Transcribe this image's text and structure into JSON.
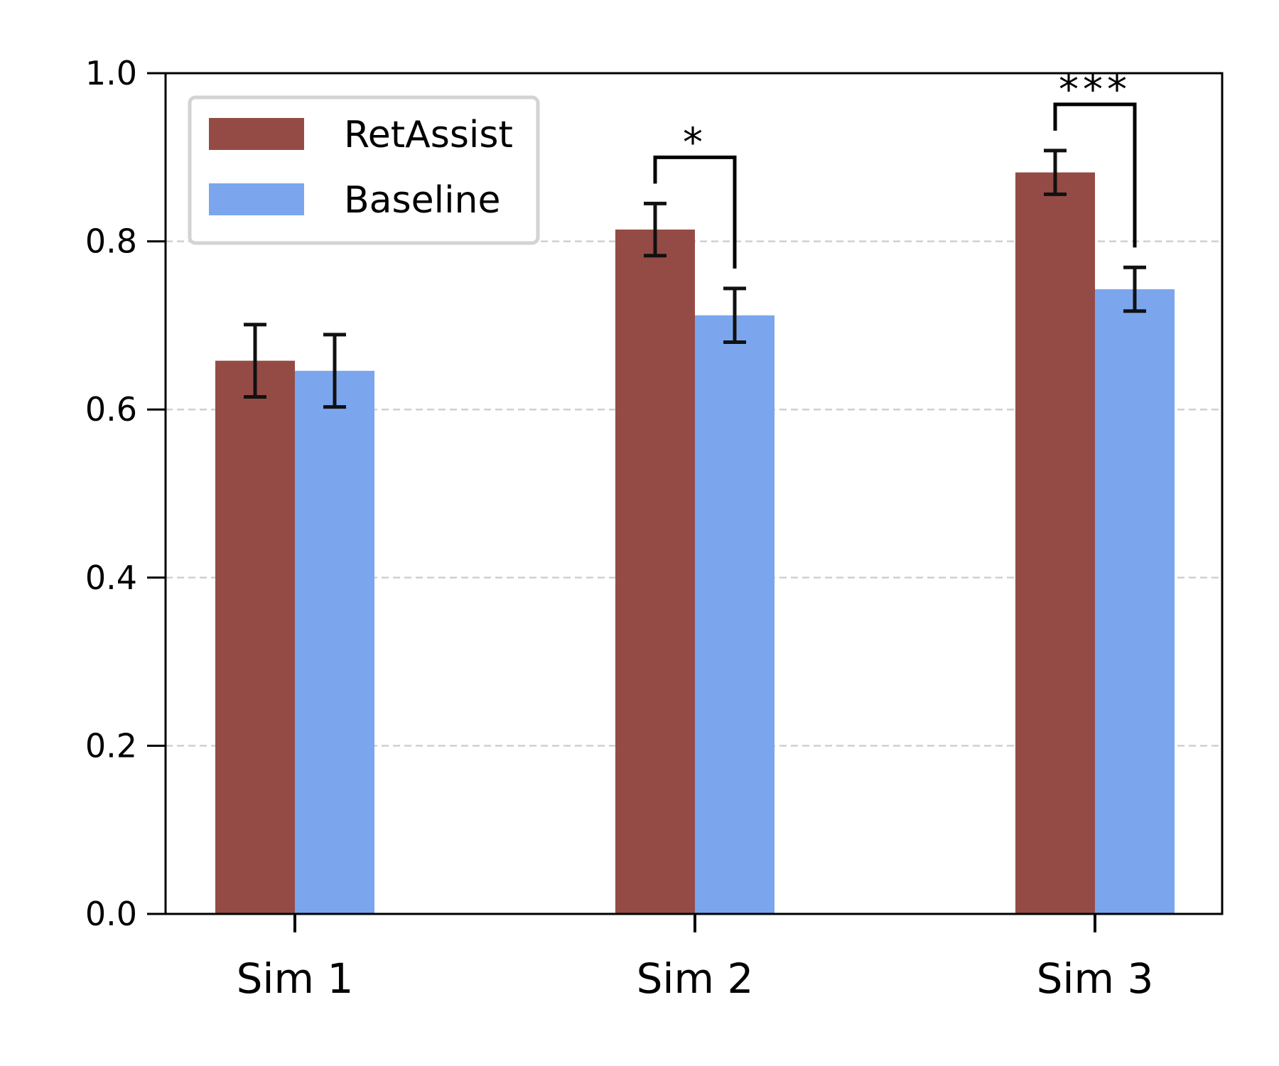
{
  "chart_data": {
    "type": "bar",
    "categories": [
      "Sim 1",
      "Sim 2",
      "Sim 3"
    ],
    "series": [
      {
        "name": "RetAssist",
        "color": "#954b45",
        "values": [
          0.658,
          0.814,
          0.882
        ],
        "errors": [
          0.043,
          0.031,
          0.026
        ]
      },
      {
        "name": "Baseline",
        "color": "#7ba6ee",
        "values": [
          0.646,
          0.712,
          0.743
        ],
        "errors": [
          0.043,
          0.032,
          0.026
        ]
      }
    ],
    "ylim": [
      0,
      1.0
    ],
    "yticks": [
      0.0,
      0.2,
      0.4,
      0.6,
      0.8,
      1.0
    ],
    "ytick_labels": [
      "0.0",
      "0.2",
      "0.4",
      "0.6",
      "0.8",
      "1.0"
    ],
    "grid": "y dashed",
    "legend": "top-left",
    "title": "",
    "xlabel": "",
    "ylabel": "",
    "annotations": [
      {
        "category_index": 1,
        "label": "*"
      },
      {
        "category_index": 2,
        "label": "***"
      }
    ]
  }
}
